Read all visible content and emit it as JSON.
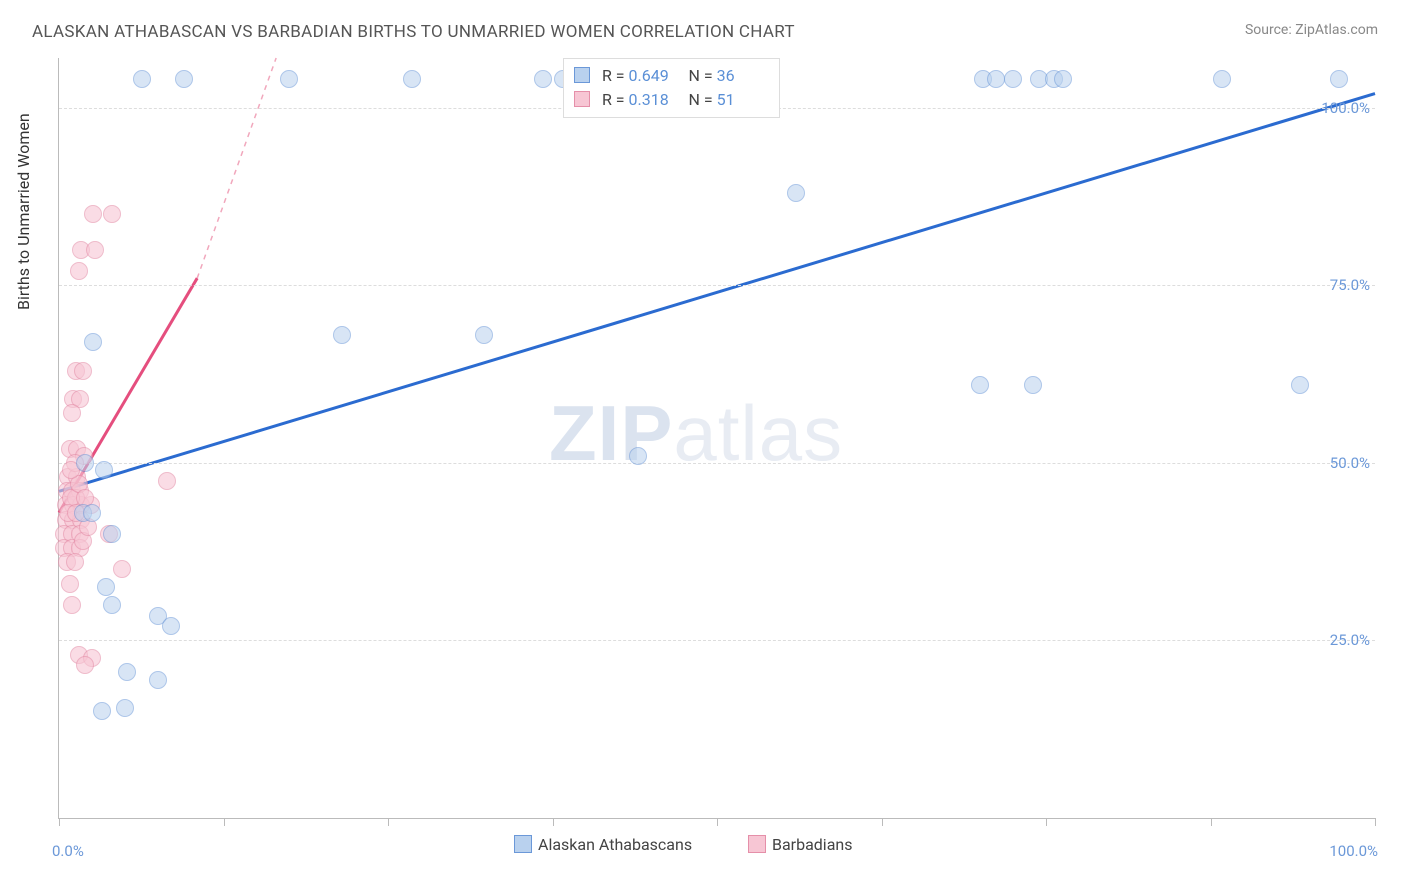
{
  "title": "ALASKAN ATHABASCAN VS BARBADIAN BIRTHS TO UNMARRIED WOMEN CORRELATION CHART",
  "source_prefix": "Source: ",
  "source_name": "ZipAtlas.com",
  "ylabel": "Births to Unmarried Women",
  "watermark_bold": "ZIP",
  "watermark_rest": "atlas",
  "chart": {
    "type": "scatter",
    "xlim": [
      0,
      100
    ],
    "ylim": [
      0,
      107
    ],
    "xticks": [
      0,
      12.5,
      25,
      37.5,
      50,
      62.5,
      75,
      87.5,
      100
    ],
    "yticks": [
      25,
      50,
      75,
      100
    ],
    "xtick_labels": {
      "0": "0.0%",
      "100": "100.0%"
    },
    "ytick_labels": {
      "25": "25.0%",
      "50": "50.0%",
      "75": "75.0%",
      "100": "100.0%"
    },
    "grid_color": "#dddddd",
    "axis_color": "#bbbbbb",
    "background_color": "#ffffff",
    "series": [
      {
        "name": "Alaskan Athabascans",
        "color_fill": "#b9d1ee",
        "color_stroke": "#6b98d8",
        "marker_radius": 8,
        "fill_opacity": 0.55,
        "R": "0.649",
        "N": "36",
        "reg_line": {
          "x1": 0,
          "y1": 46,
          "x2": 100,
          "y2": 102,
          "color": "#2b6bd0",
          "width": 3,
          "dash": null
        },
        "points": [
          [
            6.3,
            104
          ],
          [
            9.5,
            104
          ],
          [
            17.5,
            104
          ],
          [
            26.8,
            104
          ],
          [
            36.8,
            104
          ],
          [
            38.3,
            104
          ],
          [
            40.3,
            104
          ],
          [
            70.2,
            104
          ],
          [
            71.2,
            104
          ],
          [
            72.5,
            104
          ],
          [
            74.5,
            104
          ],
          [
            75.6,
            104
          ],
          [
            76.3,
            104
          ],
          [
            88.4,
            104
          ],
          [
            97.3,
            104
          ],
          [
            56.0,
            88
          ],
          [
            21.5,
            68
          ],
          [
            32.3,
            68
          ],
          [
            70.0,
            61
          ],
          [
            74.0,
            61
          ],
          [
            94.3,
            61
          ],
          [
            44.0,
            51
          ],
          [
            3.4,
            49
          ],
          [
            1.8,
            43
          ],
          [
            2.5,
            43
          ],
          [
            4.0,
            40
          ],
          [
            7.5,
            28.5
          ],
          [
            5.2,
            20.5
          ],
          [
            7.5,
            19.5
          ],
          [
            3.3,
            15
          ],
          [
            5.0,
            15.5
          ],
          [
            3.6,
            32.5
          ],
          [
            2.0,
            50
          ],
          [
            2.6,
            67
          ],
          [
            4.0,
            30
          ],
          [
            8.5,
            27
          ]
        ]
      },
      {
        "name": "Barbadians",
        "color_fill": "#f7c6d4",
        "color_stroke": "#e58fa9",
        "marker_radius": 8,
        "fill_opacity": 0.6,
        "R": "0.318",
        "N": "51",
        "reg_line_solid": {
          "x1": 0,
          "y1": 43,
          "x2": 10.5,
          "y2": 76,
          "color": "#e54e7e",
          "width": 3
        },
        "reg_line_dash": {
          "x1": 10.5,
          "y1": 76,
          "x2": 16.5,
          "y2": 107,
          "color": "#f1a7bc",
          "width": 1.5,
          "dash": "5,5"
        },
        "points": [
          [
            2.6,
            85
          ],
          [
            4.0,
            85
          ],
          [
            1.7,
            80
          ],
          [
            2.7,
            80
          ],
          [
            1.5,
            77
          ],
          [
            1.3,
            63
          ],
          [
            1.8,
            63
          ],
          [
            1.1,
            59
          ],
          [
            1.6,
            59
          ],
          [
            1.0,
            57
          ],
          [
            0.8,
            52
          ],
          [
            1.4,
            52
          ],
          [
            1.9,
            51
          ],
          [
            0.7,
            48
          ],
          [
            1.4,
            48
          ],
          [
            8.2,
            47.5
          ],
          [
            0.6,
            46
          ],
          [
            1.0,
            46
          ],
          [
            1.6,
            46
          ],
          [
            0.5,
            44
          ],
          [
            1.1,
            44
          ],
          [
            1.7,
            44
          ],
          [
            2.4,
            44
          ],
          [
            0.5,
            42
          ],
          [
            1.1,
            42
          ],
          [
            1.7,
            42
          ],
          [
            0.4,
            40
          ],
          [
            1.0,
            40
          ],
          [
            1.6,
            40
          ],
          [
            3.8,
            40
          ],
          [
            0.4,
            38
          ],
          [
            1.0,
            38
          ],
          [
            1.6,
            38
          ],
          [
            0.6,
            36
          ],
          [
            1.2,
            36
          ],
          [
            4.8,
            35
          ],
          [
            0.8,
            33
          ],
          [
            1.0,
            30
          ],
          [
            1.5,
            23
          ],
          [
            2.5,
            22.5
          ],
          [
            2.0,
            21.5
          ],
          [
            1.3,
            45
          ],
          [
            0.9,
            45
          ],
          [
            0.7,
            43
          ],
          [
            1.3,
            43
          ],
          [
            1.5,
            47
          ],
          [
            2.0,
            45
          ],
          [
            1.2,
            50
          ],
          [
            0.9,
            49
          ],
          [
            1.8,
            39
          ],
          [
            2.2,
            41
          ]
        ]
      }
    ]
  },
  "stats_labels": {
    "R": "R =",
    "N": "N ="
  }
}
